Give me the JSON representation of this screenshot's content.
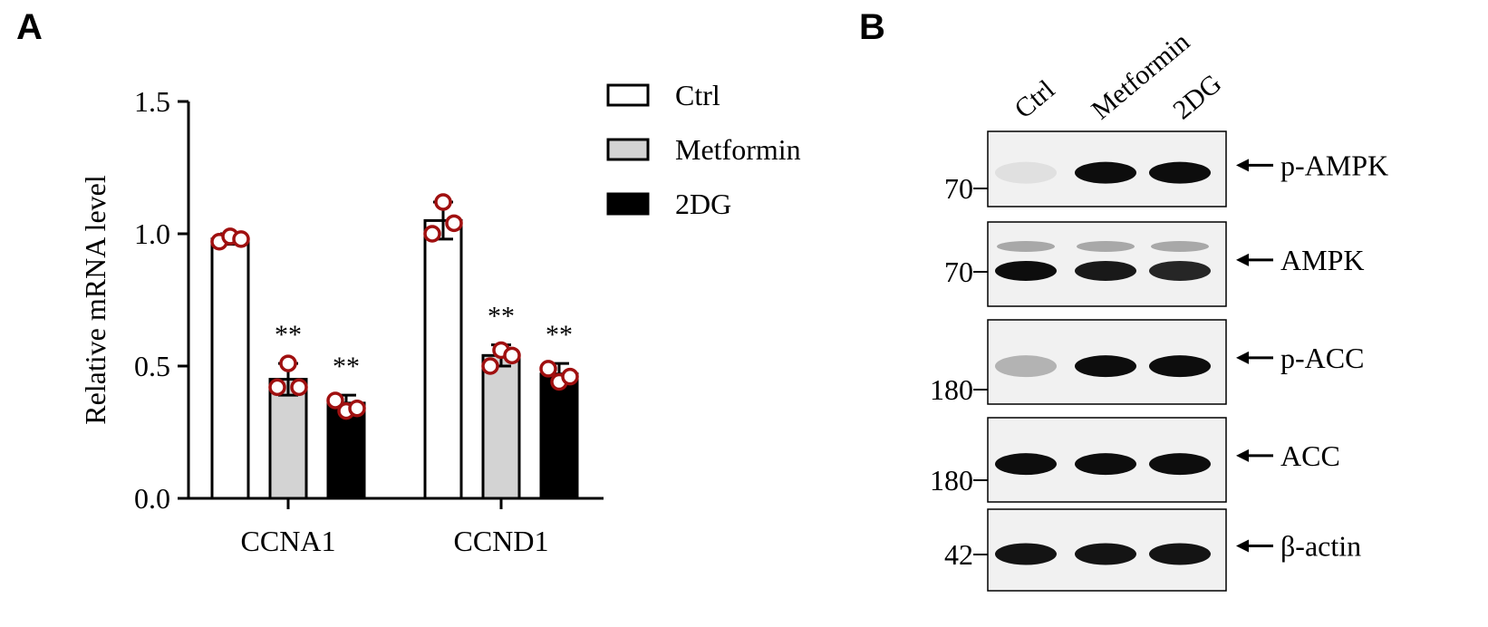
{
  "panels": {
    "a": "A",
    "b": "B"
  },
  "chart_data": {
    "type": "bar",
    "ylabel": "Relative mRNA level",
    "xlabel": "",
    "ylim": [
      0,
      1.5
    ],
    "yticks": [
      0.0,
      0.5,
      1.0,
      1.5
    ],
    "ytick_labels": [
      "0.0",
      "0.5",
      "1.0",
      "1.5"
    ],
    "categories": [
      "CCNA1",
      "CCND1"
    ],
    "legend_position": "top-right",
    "series": [
      {
        "name": "Ctrl",
        "fill": "#ffffff",
        "values": [
          0.98,
          1.05
        ],
        "error": [
          0.02,
          0.07
        ],
        "points": [
          [
            0.97,
            0.99,
            0.98
          ],
          [
            1.0,
            1.12,
            1.04
          ]
        ],
        "significance": [
          "",
          ""
        ]
      },
      {
        "name": "Metformin",
        "fill": "#d3d3d3",
        "values": [
          0.45,
          0.54
        ],
        "error": [
          0.06,
          0.04
        ],
        "points": [
          [
            0.42,
            0.51,
            0.42
          ],
          [
            0.5,
            0.56,
            0.54
          ]
        ],
        "significance": [
          "**",
          "**"
        ]
      },
      {
        "name": "2DG",
        "fill": "#000000",
        "values": [
          0.36,
          0.47
        ],
        "error": [
          0.03,
          0.04
        ],
        "points": [
          [
            0.37,
            0.33,
            0.34
          ],
          [
            0.49,
            0.44,
            0.46
          ]
        ],
        "significance": [
          "**",
          "**"
        ]
      }
    ],
    "point_color": "#a01010"
  },
  "blot": {
    "lanes": [
      "Ctrl",
      "Metformin",
      "2DG"
    ],
    "rows": [
      {
        "protein": "p-AMPK",
        "marker": "70",
        "bands": [
          0.12,
          0.95,
          0.95
        ]
      },
      {
        "protein": "AMPK",
        "marker": "70",
        "bands": [
          0.95,
          0.9,
          0.85
        ]
      },
      {
        "protein": "p-ACC",
        "marker": "180",
        "bands": [
          0.3,
          0.95,
          0.95
        ]
      },
      {
        "protein": "ACC",
        "marker": "180",
        "bands": [
          0.95,
          0.95,
          0.95
        ]
      },
      {
        "protein": "β-actin",
        "marker": "42",
        "bands": [
          0.92,
          0.92,
          0.92
        ]
      }
    ]
  }
}
